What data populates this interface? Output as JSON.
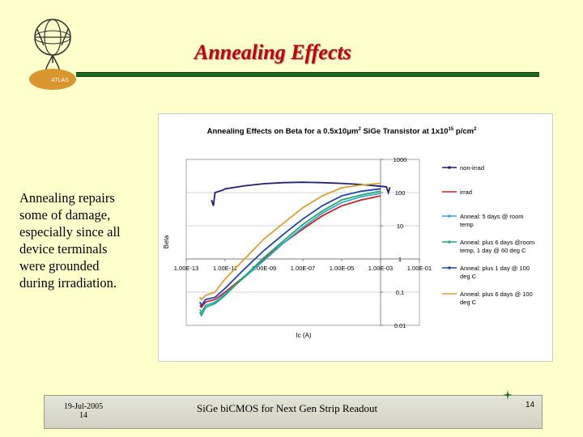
{
  "slide": {
    "title": "Annealing Effects",
    "logo_text": "ATLAS",
    "body_lines": [
      "Annealing repairs",
      "some of damage,",
      "especially since all",
      "device terminals",
      "were grounded",
      "during irradiation."
    ],
    "footer": {
      "date": "19-Jul-2005",
      "date_page": "14",
      "title": "SiGe biCMOS for Next Gen Strip Readout",
      "page": "14"
    }
  },
  "chart_data": {
    "type": "line",
    "title_pre": "Annealing Effects on Beta for a 0.5x10",
    "title_mu": "μm",
    "title_sup2": "2",
    "title_mid": " SiGe Transistor at 1x10",
    "title_sup15": "15",
    "title_post": " p/cm",
    "title_sup_end": "2",
    "xlabel": "Ic (A)",
    "ylabel": "Beta",
    "x_scale": "log",
    "y_scale": "log",
    "xlim": [
      1e-13,
      0.1
    ],
    "ylim": [
      0.01,
      1000
    ],
    "x_ticks": [
      {
        "value": 1e-13,
        "label": "1.00E-13"
      },
      {
        "value": 1e-11,
        "label": "1.00E-11"
      },
      {
        "value": 1e-09,
        "label": "1.00E-09"
      },
      {
        "value": 1e-07,
        "label": "1.00E-07"
      },
      {
        "value": 1e-05,
        "label": "1.00E-05"
      },
      {
        "value": 0.001,
        "label": "1.00E-03"
      },
      {
        "value": 0.1,
        "label": "1.00E-01"
      }
    ],
    "y_ticks": [
      {
        "value": 1000,
        "label": "1000"
      },
      {
        "value": 100,
        "label": "100"
      },
      {
        "value": 10,
        "label": "10"
      },
      {
        "value": 1,
        "label": "1"
      },
      {
        "value": 0.1,
        "label": "0,1"
      },
      {
        "value": 0.01,
        "label": "0.01"
      }
    ],
    "legend_position": "right",
    "series": [
      {
        "name_lines": [
          "non-irrad"
        ],
        "color": "#1f1f7a",
        "marker": "dot",
        "points": [
          [
            2e-12,
            60
          ],
          [
            2.5e-12,
            40
          ],
          [
            3e-12,
            100
          ],
          [
            5e-12,
            110
          ],
          [
            8e-12,
            120
          ],
          [
            1e-11,
            130
          ],
          [
            1e-10,
            160
          ],
          [
            1e-09,
            185
          ],
          [
            1e-08,
            200
          ],
          [
            1e-07,
            205
          ],
          [
            1e-06,
            200
          ],
          [
            1e-05,
            190
          ],
          [
            0.0001,
            175
          ],
          [
            0.001,
            155
          ],
          [
            0.002,
            150
          ],
          [
            0.0025,
            100
          ],
          [
            0.003,
            145
          ]
        ]
      },
      {
        "name_lines": [
          "irrad"
        ],
        "color": "#cc2222",
        "marker": "none",
        "points": [
          [
            5e-13,
            0.04
          ],
          [
            6e-13,
            0.035
          ],
          [
            1e-12,
            0.05
          ],
          [
            3e-12,
            0.06
          ],
          [
            1e-11,
            0.1
          ],
          [
            1e-10,
            0.3
          ],
          [
            1e-09,
            1
          ],
          [
            1e-08,
            3
          ],
          [
            1e-07,
            8
          ],
          [
            1e-06,
            20
          ],
          [
            1e-05,
            40
          ],
          [
            0.0001,
            60
          ],
          [
            0.001,
            80
          ]
        ]
      },
      {
        "name_lines": [
          "Anneal: 5 days @ room",
          "temp"
        ],
        "color": "#33aacc",
        "marker": "dot",
        "points": [
          [
            5e-13,
            0.03
          ],
          [
            6e-13,
            0.025
          ],
          [
            1e-12,
            0.04
          ],
          [
            3e-12,
            0.05
          ],
          [
            1e-11,
            0.09
          ],
          [
            1e-10,
            0.28
          ],
          [
            1e-09,
            0.9
          ],
          [
            1e-08,
            3
          ],
          [
            1e-07,
            9
          ],
          [
            1e-06,
            24
          ],
          [
            1e-05,
            50
          ],
          [
            0.0001,
            75
          ],
          [
            0.001,
            95
          ]
        ]
      },
      {
        "name_lines": [
          "Anneal: plus 6 days @room",
          "temp, 1 day @ 60 deg C"
        ],
        "color": "#22aa77",
        "marker": "dot",
        "points": [
          [
            5e-13,
            0.025
          ],
          [
            6e-13,
            0.02
          ],
          [
            1e-12,
            0.035
          ],
          [
            3e-12,
            0.045
          ],
          [
            1e-11,
            0.08
          ],
          [
            1e-10,
            0.3
          ],
          [
            1e-09,
            1.1
          ],
          [
            1e-08,
            3.5
          ],
          [
            1e-07,
            11
          ],
          [
            1e-06,
            28
          ],
          [
            1e-05,
            60
          ],
          [
            0.0001,
            85
          ],
          [
            0.001,
            110
          ]
        ]
      },
      {
        "name_lines": [
          "Anneal: plus 1 day @ 100",
          "deg C"
        ],
        "color": "#2244bb",
        "marker": "dot",
        "points": [
          [
            5e-13,
            0.05
          ],
          [
            6e-13,
            0.04
          ],
          [
            1e-12,
            0.06
          ],
          [
            3e-12,
            0.07
          ],
          [
            1e-11,
            0.13
          ],
          [
            1e-10,
            0.5
          ],
          [
            1e-09,
            1.8
          ],
          [
            1e-08,
            5.5
          ],
          [
            1e-07,
            16
          ],
          [
            1e-06,
            40
          ],
          [
            1e-05,
            80
          ],
          [
            0.0001,
            110
          ],
          [
            0.001,
            130
          ]
        ]
      },
      {
        "name_lines": [
          "Anneal: plus 6 days @ 100",
          "deg C"
        ],
        "color": "#e0a030",
        "marker": "none",
        "points": [
          [
            5e-13,
            0.07
          ],
          [
            6e-13,
            0.06
          ],
          [
            1e-12,
            0.08
          ],
          [
            3e-12,
            0.1
          ],
          [
            1e-11,
            0.25
          ],
          [
            1e-10,
            1
          ],
          [
            1e-09,
            4
          ],
          [
            1e-08,
            12
          ],
          [
            1e-07,
            35
          ],
          [
            1e-06,
            80
          ],
          [
            1e-05,
            140
          ],
          [
            0.0001,
            170
          ],
          [
            0.001,
            190
          ]
        ]
      }
    ]
  }
}
